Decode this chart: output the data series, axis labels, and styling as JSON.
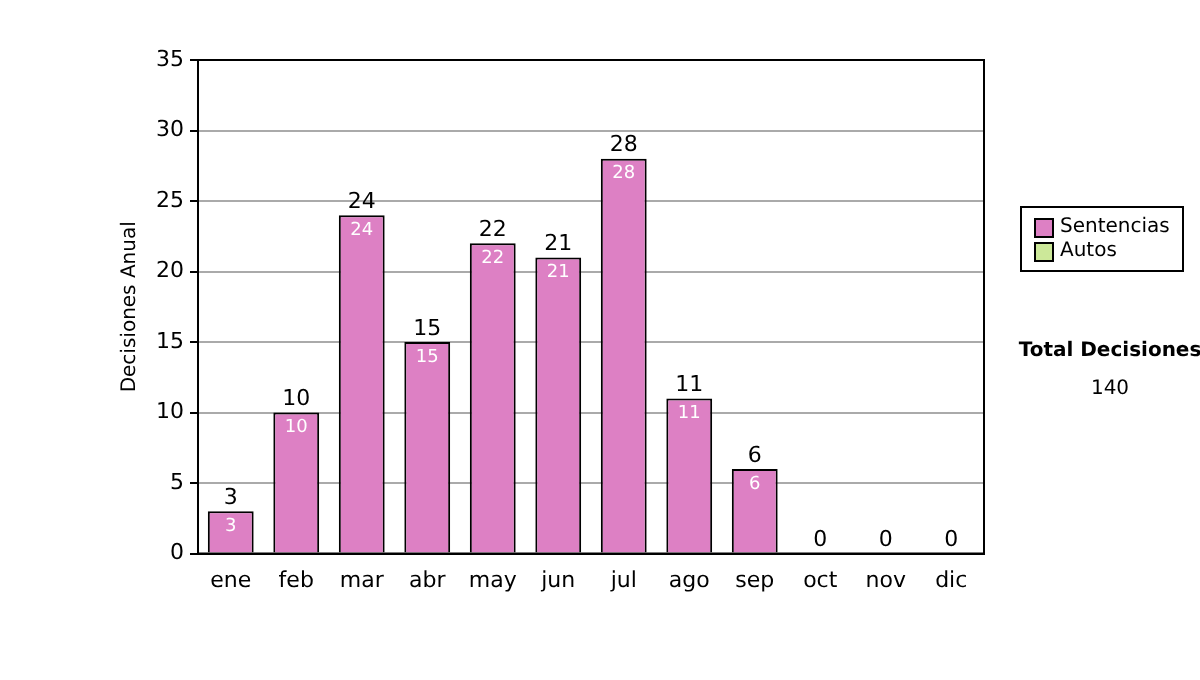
{
  "chart_data": {
    "type": "bar",
    "ylabel": "Decisiones Anual",
    "categories": [
      "ene",
      "feb",
      "mar",
      "abr",
      "may",
      "jun",
      "jul",
      "ago",
      "sep",
      "oct",
      "nov",
      "dic"
    ],
    "series": [
      {
        "name": "Sentencias",
        "color": "#dd80c4",
        "values": [
          3,
          10,
          24,
          15,
          22,
          21,
          28,
          11,
          6,
          0,
          0,
          0
        ],
        "value_labels": [
          "3",
          "10",
          "24",
          "15",
          "22",
          "21",
          "28",
          "11",
          "6",
          null,
          null,
          null
        ]
      },
      {
        "name": "Autos",
        "color": "#cce899",
        "values": [
          0,
          0,
          0,
          0,
          0,
          0,
          0,
          0,
          0,
          0,
          0,
          0
        ]
      }
    ],
    "stacked": true,
    "totals": [
      "3",
      "10",
      "24",
      "15",
      "22",
      "21",
      "28",
      "11",
      "6",
      "0",
      "0",
      "0"
    ],
    "ylim": [
      0,
      35
    ],
    "yticks": [
      0,
      5,
      10,
      15,
      20,
      25,
      30,
      35
    ],
    "grid": "y",
    "legend": "right",
    "annotations": [
      "Total Decisiones",
      "140"
    ]
  }
}
